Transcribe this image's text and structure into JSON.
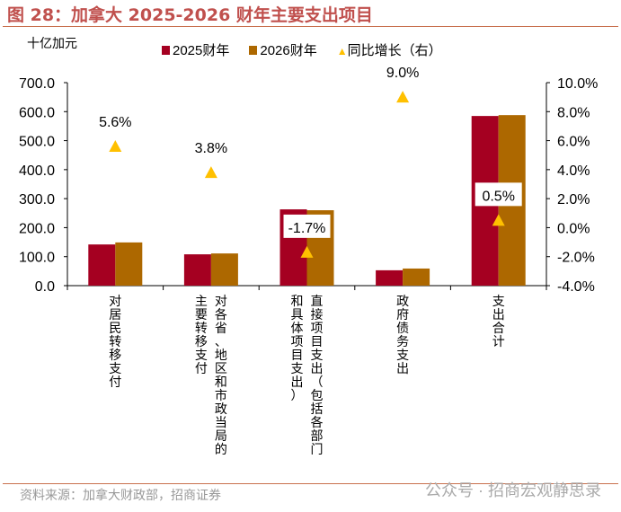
{
  "title": "图 28：加拿大 2025-2026 财年主要支出项目",
  "unit": "十亿加元",
  "source": "资料来源：加拿大财政部，招商证券",
  "watermark": "公众号 · 招商宏观静思录",
  "chart_data": {
    "type": "bar",
    "categories": [
      "对居民转移支付",
      "对各省、地区和市政当局的主要转移支付",
      "直接项目支出（包括各部门和具体项目支出）",
      "政府债务支出",
      "支出合计"
    ],
    "series": [
      {
        "name": "2025财年",
        "color": "#a50021",
        "values": [
          142,
          108,
          263,
          53,
          585
        ]
      },
      {
        "name": "2026财年",
        "color": "#ad6800",
        "values": [
          149,
          111,
          260,
          59,
          588
        ]
      },
      {
        "name": "同比增长（右）",
        "type": "scatter",
        "marker": "triangle",
        "color": "#ffc000",
        "axis": "right",
        "values": [
          5.6,
          3.8,
          -1.7,
          9.0,
          0.5
        ],
        "labels": [
          "5.6%",
          "3.8%",
          "-1.7%",
          "9.0%",
          "0.5%"
        ]
      }
    ],
    "ylim": [
      0,
      700
    ],
    "yticks": [
      "0.0",
      "100.0",
      "200.0",
      "300.0",
      "400.0",
      "500.0",
      "600.0",
      "700.0"
    ],
    "y2lim": [
      -4,
      10
    ],
    "y2ticks": [
      "-4.0%",
      "-2.0%",
      "0.0%",
      "2.0%",
      "4.0%",
      "6.0%",
      "8.0%",
      "10.0%"
    ],
    "legend": "top",
    "grid": false
  }
}
